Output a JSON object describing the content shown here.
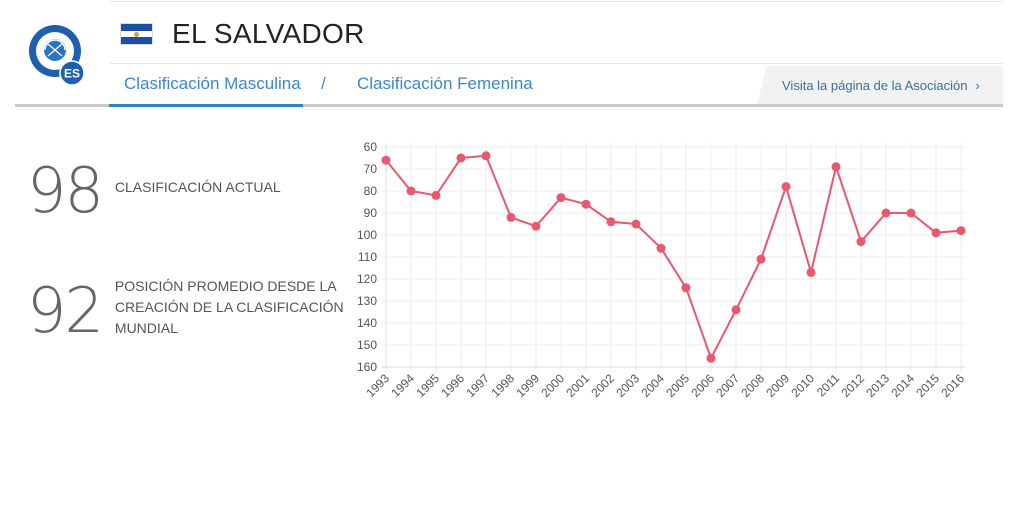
{
  "header": {
    "country": "EL SALVADOR",
    "flag_icon": "el-salvador-flag-icon",
    "logo_icon": "federation-crest-icon",
    "logo_badge": "ES"
  },
  "tabs": [
    {
      "label": "Clasificación Masculina",
      "active": true
    },
    {
      "label": "/",
      "active": false
    },
    {
      "label": "Clasificación Femenina",
      "active": false
    }
  ],
  "association_link": {
    "label": "Visita la página de la Asociación",
    "chevron": "›"
  },
  "stats": {
    "current": {
      "value": "98",
      "label": "CLASIFICACIÓN ACTUAL"
    },
    "average": {
      "value": "92",
      "label": "POSICIÓN PROMEDIO DESDE LA CREACIÓN DE LA CLASIFICACIÓN MUNDIAL"
    }
  },
  "colors": {
    "accent": "#2d82c9",
    "line": "#e8586e",
    "link": "#3d87c8"
  },
  "chart_data": {
    "type": "line",
    "title": "",
    "xlabel": "",
    "ylabel": "",
    "y_inverted": true,
    "ylim": [
      60,
      160
    ],
    "yticks": [
      60,
      70,
      80,
      90,
      100,
      110,
      120,
      130,
      140,
      150,
      160
    ],
    "grid": true,
    "legend": "none",
    "x": [
      "1993",
      "1994",
      "1995",
      "1996",
      "1997",
      "1998",
      "1999",
      "2000",
      "2001",
      "2002",
      "2003",
      "2004",
      "2005",
      "2006",
      "2007",
      "2008",
      "2009",
      "2010",
      "2011",
      "2012",
      "2013",
      "2014",
      "2015",
      "2016"
    ],
    "values": [
      66,
      80,
      82,
      65,
      64,
      92,
      96,
      83,
      86,
      94,
      95,
      106,
      124,
      156,
      134,
      111,
      78,
      117,
      69,
      103,
      90,
      90,
      99,
      98
    ]
  }
}
